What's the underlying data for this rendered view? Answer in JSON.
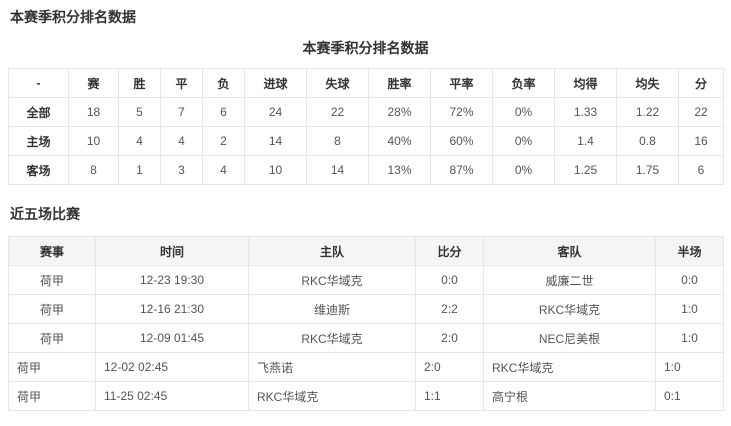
{
  "colors": {
    "border": "#e7e7e7",
    "header_bg": "#f5f5f5",
    "title_text": "#333333",
    "body_text": "#555555"
  },
  "page": {
    "title": "本赛季积分排名数据"
  },
  "standings": {
    "caption": "本赛季积分排名数据",
    "headers": [
      "-",
      "赛",
      "胜",
      "平",
      "负",
      "进球",
      "失球",
      "胜率",
      "平率",
      "负率",
      "均得",
      "均失",
      "分"
    ],
    "rows": [
      [
        "全部",
        "18",
        "5",
        "7",
        "6",
        "24",
        "22",
        "28%",
        "72%",
        "0%",
        "1.33",
        "1.22",
        "22"
      ],
      [
        "主场",
        "10",
        "4",
        "4",
        "2",
        "14",
        "8",
        "40%",
        "60%",
        "0%",
        "1.4",
        "0.8",
        "16"
      ],
      [
        "客场",
        "8",
        "1",
        "3",
        "4",
        "10",
        "14",
        "13%",
        "87%",
        "0%",
        "1.25",
        "1.75",
        "6"
      ]
    ]
  },
  "recent": {
    "title": "近五场比赛",
    "headers": [
      "赛事",
      "时间",
      "主队",
      "比分",
      "客队",
      "半场"
    ],
    "rows": [
      [
        "荷甲",
        "12-23 19:30",
        "RKC华域克",
        "0:0",
        "威廉二世",
        "0:0"
      ],
      [
        "荷甲",
        "12-16 21:30",
        "维迪斯",
        "2:2",
        "RKC华域克",
        "1:0"
      ],
      [
        "荷甲",
        "12-09 01:45",
        "RKC华域克",
        "2:0",
        "NEC尼美根",
        "1:0"
      ],
      [
        "荷甲",
        "12-02 02:45",
        "飞燕诺",
        "2:0",
        "RKC华域克",
        "1:0"
      ],
      [
        "荷甲",
        "11-25 02:45",
        "RKC华域克",
        "1:1",
        "高宁根",
        "0:1"
      ]
    ]
  }
}
